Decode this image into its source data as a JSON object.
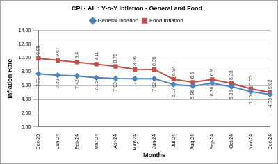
{
  "chart_data": {
    "type": "line",
    "title": "CPI - AL : Y-o-Y Inflation - General and Food",
    "x_label": "Months",
    "y_label": "Inflation Rate",
    "categories": [
      "Dec-23",
      "Jan-24",
      "Feb-24",
      "Mar-24",
      "Apr-24",
      "May-24",
      "Jun-24",
      "Jul-24",
      "Aug-24",
      "Sep-24",
      "Oct-24",
      "Nov-24",
      "Dec-24"
    ],
    "series": [
      {
        "name": "General Inflation",
        "color": "#4f81bd",
        "marker": "diamond",
        "line_style": "solid",
        "values": [
          7.71,
          7.52,
          7.42,
          7.15,
          7.03,
          7,
          7.02,
          6.17,
          5.96,
          6.36,
          5.86,
          5.15,
          4.73
        ]
      },
      {
        "name": "Food Inflation",
        "color": "#c0504d",
        "marker": "square",
        "line_style": "solid",
        "values": [
          9.95,
          9.67,
          9.4,
          9.11,
          8.79,
          8.36,
          8.35,
          6.94,
          6.5,
          6.9,
          6.33,
          5.55,
          5.02
        ]
      }
    ],
    "ylim": [
      0,
      14
    ],
    "yticks": [
      {
        "value": 0,
        "label": "0.00"
      },
      {
        "value": 2,
        "label": "2.00"
      },
      {
        "value": 4,
        "label": "4.00"
      },
      {
        "value": 6,
        "label": "6.00"
      },
      {
        "value": 8,
        "label": "8.00"
      },
      {
        "value": 10,
        "label": "10.00"
      },
      {
        "value": 12,
        "label": "12.00"
      },
      {
        "value": 14,
        "label": "14.00"
      }
    ],
    "grid": true,
    "legend": "top",
    "data_labels": true
  }
}
